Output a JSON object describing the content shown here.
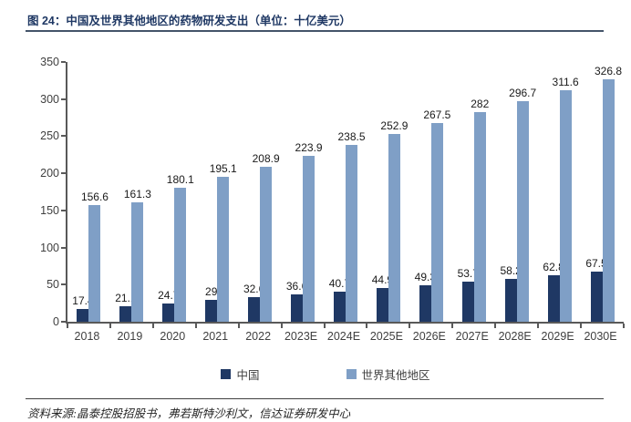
{
  "page": {
    "title": "图 24：中国及世界其他地区的药物研发支出（单位：十亿美元）",
    "source": "资料来源:晶泰控股招股书，弗若斯特沙利文，信达证券研发中心"
  },
  "colors": {
    "title": "#1f3864",
    "title_rule": "#44546a",
    "axis": "#595959",
    "text": "#404040",
    "text_dark": "#1a1a1a",
    "china_bar": "#1f3864",
    "world_bar": "#7f9fc6"
  },
  "chart_data": {
    "type": "bar",
    "title": "中国及世界其他地区的药物研发支出",
    "unit": "十亿美元",
    "categories": [
      "2018",
      "2019",
      "2020",
      "2021",
      "2022",
      "2023E",
      "2024E",
      "2025E",
      "2026E",
      "2027E",
      "2028E",
      "2029E",
      "2030E"
    ],
    "series": [
      {
        "name": "中国",
        "color": "#1f3864",
        "values": [
          17.4,
          21.1,
          24.7,
          29,
          32.6,
          36.6,
          40.7,
          44.9,
          49.3,
          53.7,
          58.2,
          62.8,
          67.5
        ]
      },
      {
        "name": "世界其他地区",
        "color": "#7f9fc6",
        "values": [
          156.6,
          161.3,
          180.1,
          195.1,
          208.9,
          223.9,
          238.5,
          252.9,
          267.5,
          282,
          296.7,
          311.6,
          326.8
        ]
      }
    ],
    "xlabel": "",
    "ylabel": "",
    "ylim": [
      0,
      350
    ],
    "yticks": [
      0,
      50,
      100,
      150,
      200,
      250,
      300,
      350
    ],
    "grid": false,
    "data_labels": true,
    "legend_position": "bottom"
  }
}
